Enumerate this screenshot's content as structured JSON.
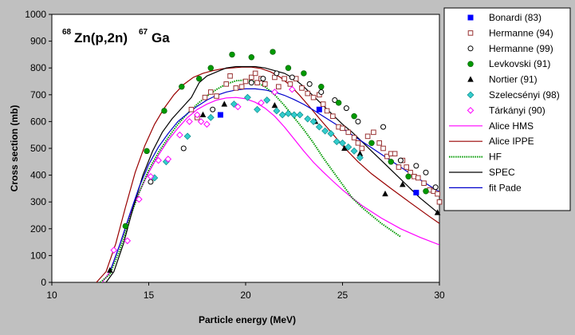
{
  "chart_data": {
    "type": "scatter",
    "title": {
      "sup1": "68",
      "part1": "Zn(p,2n)",
      "sup2": "67",
      "part2": "Ga"
    },
    "xlabel": "Particle energy (MeV)",
    "ylabel": "Cross section (mb)",
    "xlim": [
      10,
      30
    ],
    "ylim": [
      0,
      1000
    ],
    "xticks": [
      10,
      15,
      20,
      25,
      30
    ],
    "yticks": [
      0,
      100,
      200,
      300,
      400,
      500,
      600,
      700,
      800,
      900,
      1000
    ],
    "legend_position": "right",
    "markers": [
      {
        "name": "Bonardi (83)",
        "marker": "square-filled",
        "color": "#0000ff",
        "x": [
          18.7,
          23.8,
          28.8
        ],
        "y": [
          625,
          645,
          335
        ]
      },
      {
        "name": "Hermanne (94)",
        "marker": "square-open",
        "color": "#993333",
        "x": [
          17.2,
          17.5,
          17.9,
          18.2,
          18.5,
          19.0,
          19.2,
          19.5,
          19.8,
          20.0,
          20.3,
          20.5,
          20.6,
          20.8,
          21.0,
          21.5,
          21.7,
          22.0,
          22.3,
          22.6,
          22.9,
          23.2,
          23.5,
          23.8,
          24.0,
          24.2,
          24.5,
          24.8,
          25.0,
          25.3,
          25.6,
          25.8,
          26.0,
          26.3,
          26.6,
          26.9,
          27.1,
          27.3,
          27.5,
          27.7,
          27.9,
          28.1,
          28.3,
          28.5,
          28.7,
          28.9,
          29.2,
          29.5,
          29.7,
          29.9,
          30.0
        ],
        "y": [
          645,
          615,
          690,
          710,
          695,
          740,
          770,
          725,
          730,
          750,
          765,
          780,
          745,
          760,
          740,
          765,
          730,
          760,
          740,
          760,
          725,
          705,
          690,
          700,
          665,
          640,
          620,
          580,
          575,
          560,
          540,
          520,
          500,
          545,
          560,
          520,
          500,
          470,
          480,
          480,
          430,
          455,
          430,
          410,
          395,
          390,
          370,
          345,
          340,
          330,
          300
        ]
      },
      {
        "name": "Hermanne (99)",
        "marker": "circle-open",
        "color": "#000000",
        "x": [
          15.1,
          16.8,
          18.3,
          20.3,
          20.9,
          21.6,
          22.4,
          23.3,
          23.9,
          24.6,
          25.2,
          25.8,
          27.1,
          28.0,
          28.8,
          29.3,
          29.8
        ],
        "y": [
          375,
          500,
          645,
          745,
          760,
          780,
          765,
          740,
          710,
          680,
          650,
          600,
          580,
          455,
          435,
          410,
          355
        ]
      },
      {
        "name": "Levkovski (91)",
        "marker": "circle-filled",
        "color": "#009900",
        "x": [
          13.8,
          14.9,
          15.8,
          16.7,
          17.6,
          18.2,
          19.3,
          20.3,
          21.4,
          22.2,
          23.0,
          23.9,
          24.8,
          25.6,
          26.5,
          27.5,
          28.4,
          29.3
        ],
        "y": [
          210,
          490,
          640,
          730,
          760,
          800,
          850,
          840,
          860,
          800,
          780,
          730,
          670,
          620,
          520,
          450,
          395,
          340
        ]
      },
      {
        "name": "Nortier (91)",
        "marker": "triangle-filled",
        "color": "#000000",
        "x": [
          13.0,
          17.8,
          18.9,
          21.5,
          23.6,
          25.1,
          25.9,
          27.2,
          28.1,
          29.9
        ],
        "y": [
          45,
          625,
          665,
          660,
          600,
          500,
          480,
          330,
          365,
          260
        ]
      },
      {
        "name": "Szelecsényi (98)",
        "marker": "diamond-filled",
        "color": "#33cccc",
        "x": [
          15.3,
          15.9,
          17.0,
          18.2,
          19.4,
          20.1,
          20.6,
          21.1,
          21.6,
          21.9,
          22.2,
          22.5,
          22.8,
          23.2,
          23.5,
          23.8,
          24.1,
          24.4,
          24.7,
          25.0,
          25.3,
          25.6,
          25.9
        ],
        "y": [
          390,
          450,
          545,
          615,
          665,
          690,
          645,
          680,
          640,
          625,
          630,
          625,
          625,
          610,
          600,
          580,
          565,
          555,
          525,
          520,
          505,
          490,
          465
        ]
      },
      {
        "name": "Tárkányi (90)",
        "marker": "diamond-open",
        "color": "#ff00ff",
        "x": [
          13.2,
          13.9,
          14.5,
          15.1,
          15.5,
          16.0,
          16.6,
          17.1,
          17.5,
          17.7,
          18.0,
          19.6,
          20.8,
          21.5,
          22.4
        ],
        "y": [
          120,
          155,
          310,
          395,
          455,
          460,
          550,
          600,
          625,
          600,
          590,
          655,
          670,
          710,
          720
        ]
      }
    ],
    "curves": [
      {
        "name": "Alice HMS",
        "style": "solid",
        "color": "#ff00ff",
        "x": [
          12.6,
          13.0,
          13.5,
          14.0,
          14.5,
          15.0,
          15.5,
          16.0,
          16.5,
          17.0,
          17.5,
          18.0,
          18.5,
          19.0,
          19.5,
          20.0,
          20.5,
          21.0,
          21.5,
          22.0,
          22.5,
          23.0,
          23.5,
          24.0,
          24.5,
          25.0,
          25.5,
          26.0,
          27.0,
          28.0,
          29.0,
          30.0
        ],
        "y": [
          0,
          40,
          140,
          245,
          335,
          410,
          475,
          530,
          575,
          615,
          645,
          665,
          680,
          688,
          690,
          685,
          672,
          650,
          620,
          580,
          535,
          490,
          448,
          412,
          378,
          345,
          315,
          287,
          240,
          200,
          168,
          140
        ]
      },
      {
        "name": "Alice IPPE",
        "style": "solid",
        "color": "#990000",
        "x": [
          12.3,
          12.8,
          13.3,
          13.8,
          14.3,
          14.8,
          15.3,
          15.8,
          16.3,
          16.8,
          17.3,
          17.8,
          18.3,
          18.8,
          19.3,
          19.8,
          20.3,
          20.8,
          21.3,
          21.8,
          22.3,
          22.8,
          23.3,
          23.8,
          24.3,
          24.8,
          25.3,
          25.8,
          26.5,
          27.5,
          28.5,
          29.5,
          30.0
        ],
        "y": [
          0,
          40,
          145,
          280,
          410,
          510,
          590,
          650,
          700,
          738,
          765,
          780,
          790,
          797,
          800,
          803,
          803,
          798,
          785,
          765,
          735,
          697,
          655,
          612,
          570,
          528,
          487,
          450,
          405,
          350,
          297,
          245,
          220
        ]
      },
      {
        "name": "HF",
        "style": "dotted",
        "color": "#009900",
        "x": [
          12.5,
          13.0,
          13.5,
          14.0,
          14.5,
          15.0,
          15.5,
          16.0,
          16.5,
          17.0,
          17.5,
          18.0,
          18.5,
          19.0,
          19.5,
          20.0,
          20.5,
          21.0,
          21.5,
          22.0,
          22.5,
          23.0,
          23.5,
          24.0,
          24.5,
          25.0,
          25.5,
          26.0,
          26.5,
          27.0,
          27.5,
          28.0
        ],
        "y": [
          0,
          30,
          120,
          235,
          335,
          420,
          485,
          540,
          590,
          630,
          665,
          695,
          720,
          740,
          752,
          755,
          748,
          730,
          700,
          660,
          615,
          570,
          520,
          465,
          415,
          365,
          315,
          280,
          250,
          220,
          195,
          170
        ]
      },
      {
        "name": "SPEC",
        "style": "solid",
        "color": "#000000",
        "x": [
          12.8,
          13.2,
          13.7,
          14.2,
          14.7,
          15.2,
          15.7,
          16.2,
          16.7,
          17.2,
          17.6,
          18.0,
          18.5,
          19.0,
          19.5,
          20.0,
          20.5,
          21.0,
          21.5,
          22.0,
          22.5,
          23.0,
          23.5,
          24.0,
          24.5,
          25.0,
          25.5,
          26.0,
          26.5,
          27.0,
          27.5,
          28.0,
          28.5,
          29.0,
          29.5,
          30.0
        ],
        "y": [
          0,
          40,
          145,
          280,
          400,
          490,
          560,
          610,
          650,
          690,
          745,
          770,
          785,
          800,
          805,
          805,
          805,
          800,
          790,
          780,
          760,
          730,
          695,
          660,
          625,
          590,
          560,
          525,
          490,
          455,
          420,
          385,
          350,
          315,
          285,
          255
        ]
      },
      {
        "name": "fit Pade",
        "style": "solid",
        "color": "#0000cc",
        "x": [
          13.0,
          13.5,
          14.0,
          14.5,
          15.0,
          15.5,
          16.0,
          16.5,
          17.0,
          17.5,
          18.0,
          18.5,
          19.0,
          19.5,
          20.0,
          20.5,
          21.0,
          21.5,
          22.0,
          22.5,
          23.0,
          23.5,
          24.0,
          24.5,
          25.0,
          25.5,
          26.0,
          26.5,
          27.0,
          27.5,
          28.0,
          28.5,
          29.0,
          29.5,
          30.0
        ],
        "y": [
          40,
          140,
          250,
          355,
          440,
          505,
          555,
          600,
          630,
          657,
          680,
          698,
          710,
          718,
          722,
          722,
          718,
          710,
          698,
          682,
          664,
          643,
          620,
          597,
          574,
          550,
          526,
          502,
          478,
          454,
          430,
          406,
          383,
          360,
          338
        ]
      }
    ]
  }
}
